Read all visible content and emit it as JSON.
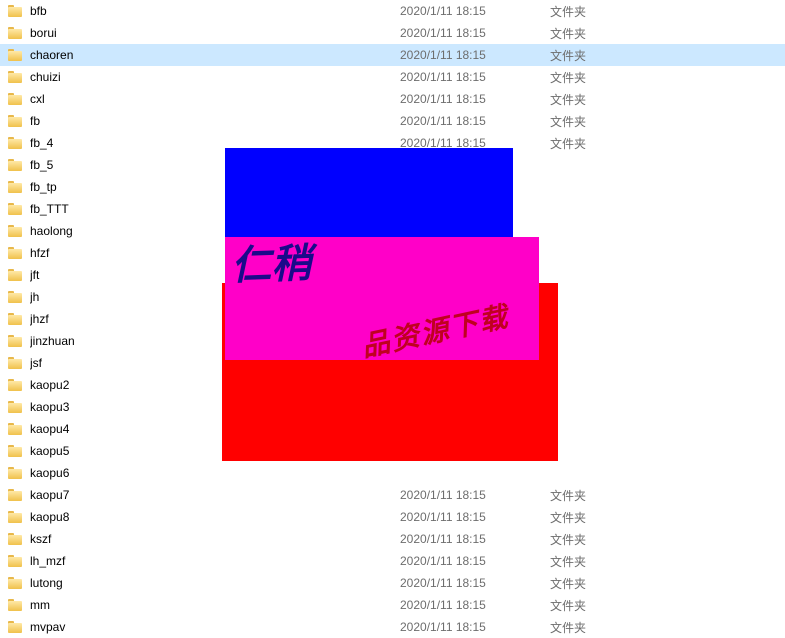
{
  "type_label": "文件夹",
  "rows": [
    {
      "name": "bfb",
      "date": "2020/1/11 18:15",
      "type": "文件夹",
      "selected": false
    },
    {
      "name": "borui",
      "date": "2020/1/11 18:15",
      "type": "文件夹",
      "selected": false
    },
    {
      "name": "chaoren",
      "date": "2020/1/11 18:15",
      "type": "文件夹",
      "selected": true
    },
    {
      "name": "chuizi",
      "date": "2020/1/11 18:15",
      "type": "文件夹",
      "selected": false
    },
    {
      "name": "cxl",
      "date": "2020/1/11 18:15",
      "type": "文件夹",
      "selected": false
    },
    {
      "name": "fb",
      "date": "2020/1/11 18:15",
      "type": "文件夹",
      "selected": false
    },
    {
      "name": "fb_4",
      "date": "2020/1/11 18:15",
      "type": "文件夹",
      "selected": false
    },
    {
      "name": "fb_5",
      "date": "",
      "type": "",
      "selected": false
    },
    {
      "name": "fb_tp",
      "date": "",
      "type": "",
      "selected": false
    },
    {
      "name": "fb_TTT",
      "date": "",
      "type": "",
      "selected": false
    },
    {
      "name": "haolong",
      "date": "",
      "type": "",
      "selected": false
    },
    {
      "name": "hfzf",
      "date": "",
      "type": "",
      "selected": false
    },
    {
      "name": "jft",
      "date": "",
      "type": "",
      "selected": false
    },
    {
      "name": "jh",
      "date": "",
      "type": "",
      "selected": false
    },
    {
      "name": "jhzf",
      "date": "",
      "type": "",
      "selected": false
    },
    {
      "name": "jinzhuan",
      "date": "",
      "type": "",
      "selected": false
    },
    {
      "name": "jsf",
      "date": "",
      "type": "",
      "selected": false
    },
    {
      "name": "kaopu2",
      "date": "",
      "type": "",
      "selected": false
    },
    {
      "name": "kaopu3",
      "date": "",
      "type": "",
      "selected": false
    },
    {
      "name": "kaopu4",
      "date": "",
      "type": "",
      "selected": false
    },
    {
      "name": "kaopu5",
      "date": "",
      "type": "",
      "selected": false
    },
    {
      "name": "kaopu6",
      "date": "",
      "type": "",
      "selected": false
    },
    {
      "name": "kaopu7",
      "date": "2020/1/11 18:15",
      "type": "文件夹",
      "selected": false
    },
    {
      "name": "kaopu8",
      "date": "2020/1/11 18:15",
      "type": "文件夹",
      "selected": false
    },
    {
      "name": "kszf",
      "date": "2020/1/11 18:15",
      "type": "文件夹",
      "selected": false
    },
    {
      "name": "lh_mzf",
      "date": "2020/1/11 18:15",
      "type": "文件夹",
      "selected": false
    },
    {
      "name": "lutong",
      "date": "2020/1/11 18:15",
      "type": "文件夹",
      "selected": false
    },
    {
      "name": "mm",
      "date": "2020/1/11 18:15",
      "type": "文件夹",
      "selected": false
    },
    {
      "name": "mvpav",
      "date": "2020/1/11 18:15",
      "type": "文件夹",
      "selected": false
    }
  ],
  "overlays": {
    "blue": {
      "color": "#0000ff"
    },
    "magenta": {
      "color": "#ff00c8"
    },
    "red": {
      "color": "#ff0000"
    }
  },
  "scribble_text_1": "仁稍",
  "scribble_text_2": "品资源下载"
}
